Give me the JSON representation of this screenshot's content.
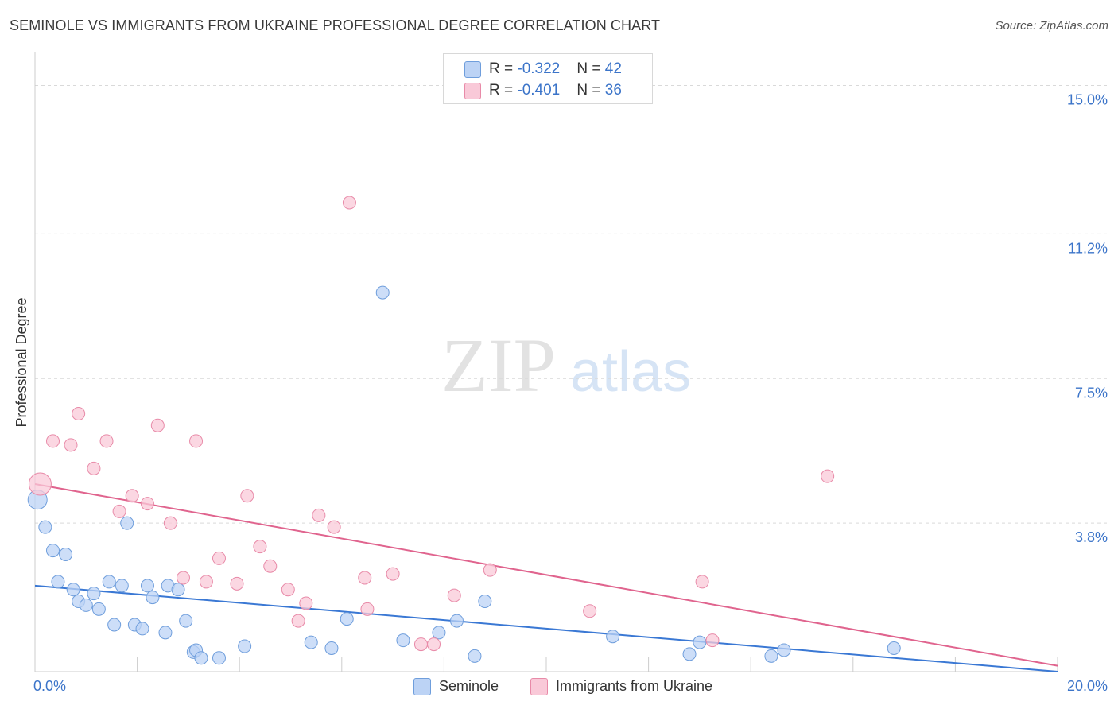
{
  "title": "SEMINOLE VS IMMIGRANTS FROM UKRAINE PROFESSIONAL DEGREE CORRELATION CHART",
  "source": "Source: ZipAtlas.com",
  "watermark": {
    "zip": "ZIP",
    "atlas": "atlas"
  },
  "legend_top": [
    {
      "r_label": "R = ",
      "r_value": "-0.322",
      "n_label": "N = ",
      "n_value": "42"
    },
    {
      "r_label": "R = ",
      "r_value": "-0.401",
      "n_label": "N = ",
      "n_value": "36"
    }
  ],
  "colors": {
    "seminole_fill": "#bcd3f5",
    "seminole_stroke": "#6f9edc",
    "seminole_line": "#3a78d4",
    "ukraine_fill": "#f9c9d8",
    "ukraine_stroke": "#e88aa8",
    "ukraine_line": "#e0648e",
    "tick_label": "#3b74c9",
    "grid": "#d9d9d9"
  },
  "chart_data": {
    "type": "scatter",
    "title": "SEMINOLE VS IMMIGRANTS FROM UKRAINE PROFESSIONAL DEGREE CORRELATION CHART",
    "xlabel": "",
    "ylabel": "Professional Degree",
    "xlim": [
      0,
      20
    ],
    "ylim": [
      0,
      15.6
    ],
    "x_tick_labels": [
      {
        "value": 0,
        "label": "0.0%"
      },
      {
        "value": 20,
        "label": "20.0%"
      }
    ],
    "y_tick_labels": [
      {
        "value": 3.8,
        "label": "3.8%"
      },
      {
        "value": 7.5,
        "label": "7.5%"
      },
      {
        "value": 11.2,
        "label": "11.2%"
      },
      {
        "value": 15.0,
        "label": "15.0%"
      }
    ],
    "series": [
      {
        "name": "Seminole",
        "r": -0.322,
        "n": 42,
        "trend": {
          "x": [
            0,
            20
          ],
          "y": [
            2.2,
            0.0
          ]
        },
        "points": [
          {
            "x": 0.05,
            "y": 4.4,
            "size": 12
          },
          {
            "x": 0.2,
            "y": 3.7
          },
          {
            "x": 0.35,
            "y": 3.1
          },
          {
            "x": 0.6,
            "y": 3.0
          },
          {
            "x": 0.45,
            "y": 2.3
          },
          {
            "x": 0.75,
            "y": 2.1
          },
          {
            "x": 0.85,
            "y": 1.8
          },
          {
            "x": 1.0,
            "y": 1.7
          },
          {
            "x": 1.15,
            "y": 2.0
          },
          {
            "x": 1.25,
            "y": 1.6
          },
          {
            "x": 1.45,
            "y": 2.3
          },
          {
            "x": 1.7,
            "y": 2.2
          },
          {
            "x": 1.55,
            "y": 1.2
          },
          {
            "x": 1.95,
            "y": 1.2
          },
          {
            "x": 2.1,
            "y": 1.1
          },
          {
            "x": 2.2,
            "y": 2.2
          },
          {
            "x": 2.3,
            "y": 1.9
          },
          {
            "x": 2.6,
            "y": 2.2
          },
          {
            "x": 2.55,
            "y": 1.0
          },
          {
            "x": 2.8,
            "y": 2.1
          },
          {
            "x": 2.95,
            "y": 1.3
          },
          {
            "x": 3.1,
            "y": 0.5
          },
          {
            "x": 3.15,
            "y": 0.55
          },
          {
            "x": 3.25,
            "y": 0.35
          },
          {
            "x": 3.6,
            "y": 0.35
          },
          {
            "x": 4.1,
            "y": 0.65
          },
          {
            "x": 1.8,
            "y": 3.8
          },
          {
            "x": 5.4,
            "y": 0.75
          },
          {
            "x": 5.8,
            "y": 0.6
          },
          {
            "x": 6.1,
            "y": 1.35
          },
          {
            "x": 6.8,
            "y": 9.7
          },
          {
            "x": 7.2,
            "y": 0.8
          },
          {
            "x": 7.9,
            "y": 1.0
          },
          {
            "x": 8.25,
            "y": 1.3
          },
          {
            "x": 8.6,
            "y": 0.4
          },
          {
            "x": 8.8,
            "y": 1.8
          },
          {
            "x": 11.3,
            "y": 0.9
          },
          {
            "x": 12.8,
            "y": 0.45
          },
          {
            "x": 13.0,
            "y": 0.75
          },
          {
            "x": 14.4,
            "y": 0.4
          },
          {
            "x": 14.65,
            "y": 0.55
          },
          {
            "x": 16.8,
            "y": 0.6
          }
        ]
      },
      {
        "name": "Immigrants from Ukraine",
        "r": -0.401,
        "n": 36,
        "trend": {
          "x": [
            0,
            20
          ],
          "y": [
            4.8,
            0.15
          ]
        },
        "points": [
          {
            "x": 0.1,
            "y": 4.8,
            "size": 14
          },
          {
            "x": 0.35,
            "y": 5.9
          },
          {
            "x": 0.7,
            "y": 5.8
          },
          {
            "x": 0.85,
            "y": 6.6
          },
          {
            "x": 1.15,
            "y": 5.2
          },
          {
            "x": 1.4,
            "y": 5.9
          },
          {
            "x": 1.65,
            "y": 4.1
          },
          {
            "x": 1.9,
            "y": 4.5
          },
          {
            "x": 2.2,
            "y": 4.3
          },
          {
            "x": 2.4,
            "y": 6.3
          },
          {
            "x": 2.65,
            "y": 3.8
          },
          {
            "x": 2.9,
            "y": 2.4
          },
          {
            "x": 3.15,
            "y": 5.9
          },
          {
            "x": 3.35,
            "y": 2.3
          },
          {
            "x": 3.6,
            "y": 2.9
          },
          {
            "x": 3.95,
            "y": 2.25
          },
          {
            "x": 4.15,
            "y": 4.5
          },
          {
            "x": 4.4,
            "y": 3.2
          },
          {
            "x": 4.6,
            "y": 2.7
          },
          {
            "x": 4.95,
            "y": 2.1
          },
          {
            "x": 5.15,
            "y": 1.3
          },
          {
            "x": 5.3,
            "y": 1.75
          },
          {
            "x": 5.55,
            "y": 4.0
          },
          {
            "x": 5.85,
            "y": 3.7
          },
          {
            "x": 6.15,
            "y": 12.0
          },
          {
            "x": 6.45,
            "y": 2.4
          },
          {
            "x": 6.5,
            "y": 1.6
          },
          {
            "x": 7.0,
            "y": 2.5
          },
          {
            "x": 7.55,
            "y": 0.7
          },
          {
            "x": 7.8,
            "y": 0.7
          },
          {
            "x": 8.2,
            "y": 1.95
          },
          {
            "x": 8.9,
            "y": 2.6
          },
          {
            "x": 10.85,
            "y": 1.55
          },
          {
            "x": 13.05,
            "y": 2.3
          },
          {
            "x": 13.25,
            "y": 0.8
          },
          {
            "x": 15.5,
            "y": 5.0
          }
        ]
      }
    ]
  },
  "legend_bottom": [
    "Seminole",
    "Immigrants from Ukraine"
  ]
}
